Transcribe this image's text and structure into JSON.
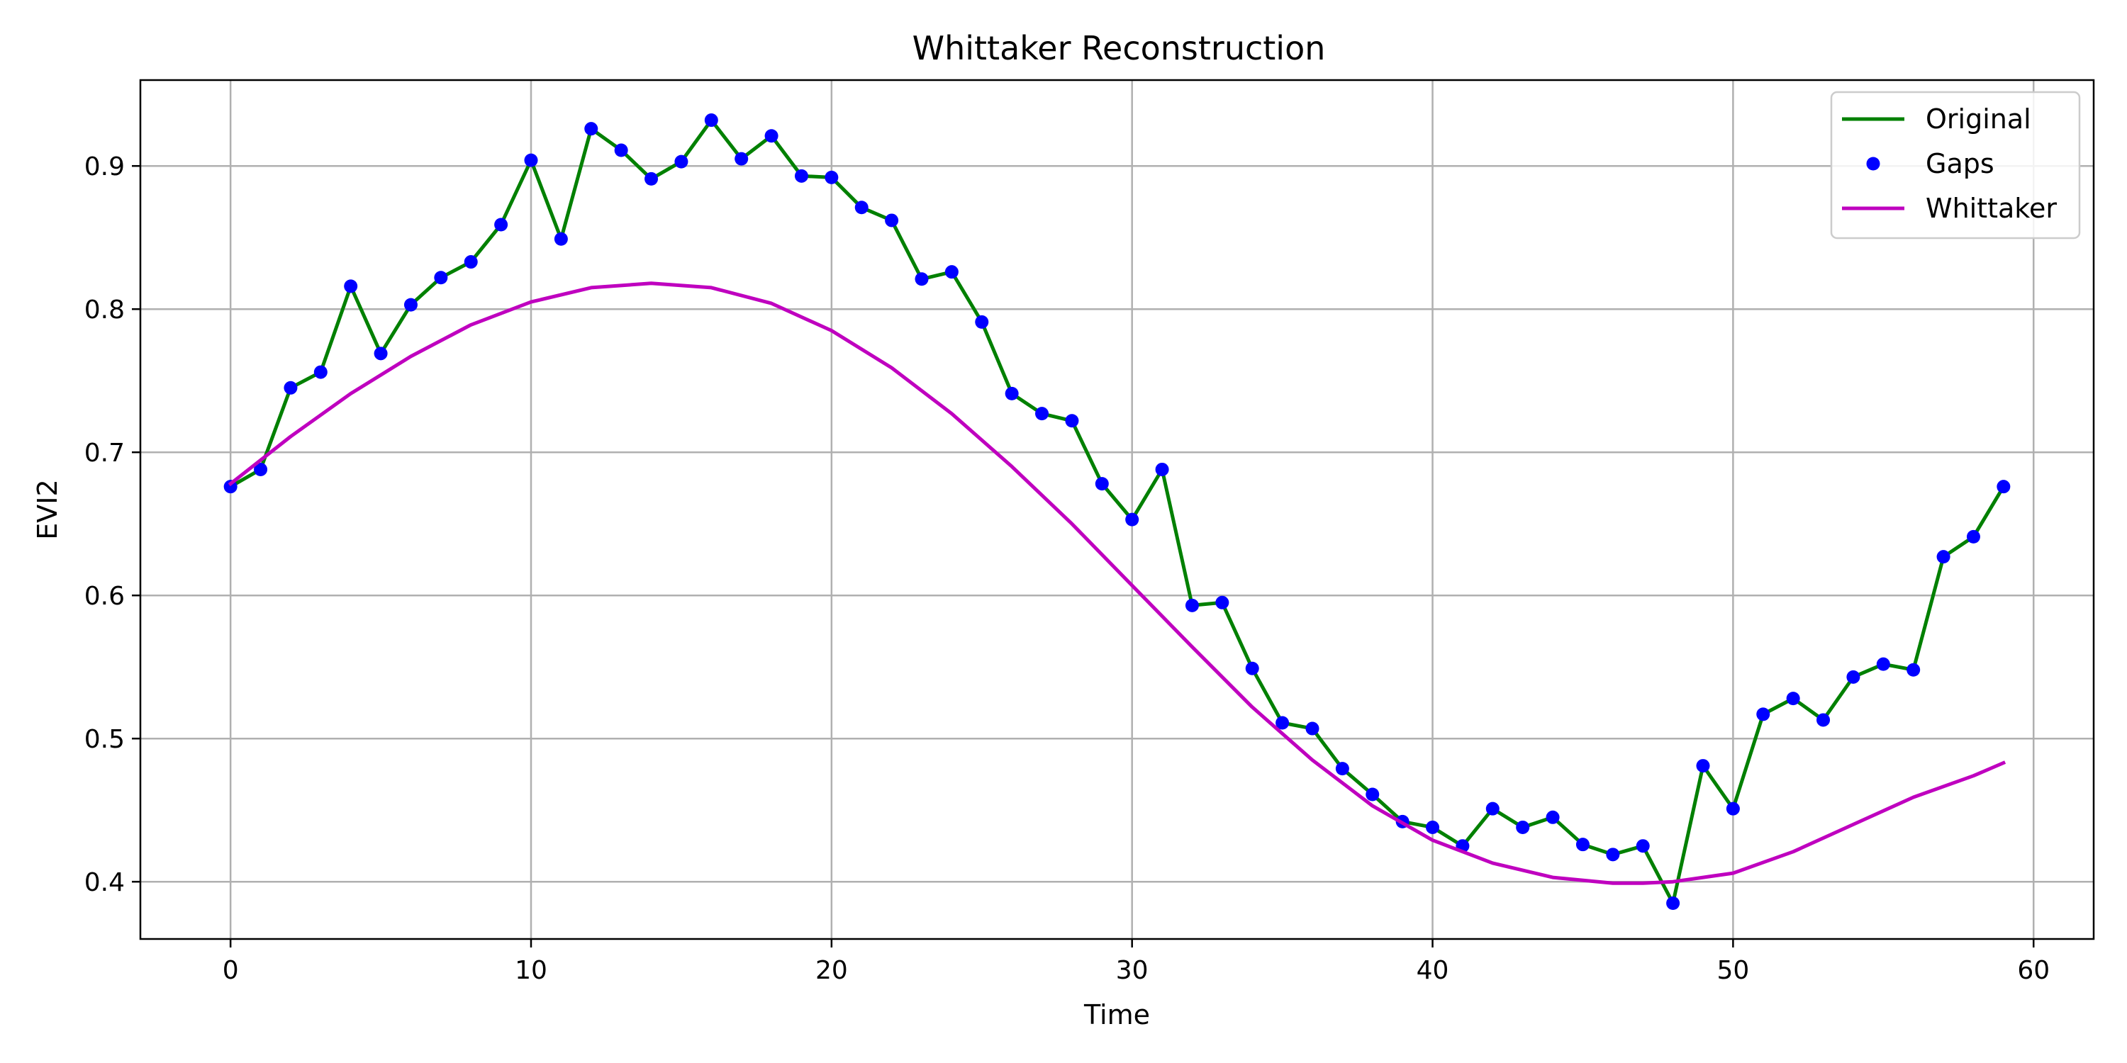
{
  "chart_data": {
    "type": "line",
    "title": "Whittaker Reconstruction",
    "xlabel": "Time",
    "ylabel": "EVI2",
    "xlim": [
      -3,
      62
    ],
    "ylim": [
      0.36,
      0.96
    ],
    "xticks": [
      0,
      10,
      20,
      30,
      40,
      50,
      60
    ],
    "yticks": [
      0.4,
      0.5,
      0.6,
      0.7,
      0.8,
      0.9
    ],
    "grid": true,
    "legend": "top-right",
    "series": [
      {
        "name": "Original",
        "style": "line",
        "color": "#008000",
        "x": [
          0,
          1,
          2,
          3,
          4,
          5,
          6,
          7,
          8,
          9,
          10,
          11,
          12,
          13,
          14,
          15,
          16,
          17,
          18,
          19,
          20,
          21,
          22,
          23,
          24,
          25,
          26,
          27,
          28,
          29,
          30,
          31,
          32,
          33,
          34,
          35,
          36,
          37,
          38,
          39,
          40,
          41,
          42,
          43,
          44,
          45,
          46,
          47,
          48,
          49,
          50,
          51,
          52,
          53,
          54,
          55,
          56,
          57,
          58,
          59
        ],
        "values": [
          0.676,
          0.688,
          0.745,
          0.756,
          0.816,
          0.769,
          0.803,
          0.822,
          0.833,
          0.859,
          0.904,
          0.849,
          0.926,
          0.911,
          0.891,
          0.903,
          0.932,
          0.905,
          0.921,
          0.893,
          0.892,
          0.871,
          0.862,
          0.821,
          0.826,
          0.791,
          0.741,
          0.727,
          0.722,
          0.678,
          0.653,
          0.688,
          0.593,
          0.595,
          0.549,
          0.511,
          0.507,
          0.479,
          0.461,
          0.442,
          0.438,
          0.425,
          0.451,
          0.438,
          0.445,
          0.426,
          0.419,
          0.425,
          0.385,
          0.481,
          0.451,
          0.517,
          0.528,
          0.513,
          0.543,
          0.552,
          0.548,
          0.627,
          0.641,
          0.676
        ]
      },
      {
        "name": "Gaps",
        "style": "markers",
        "color": "#0000ff",
        "x": [
          0,
          1,
          2,
          3,
          4,
          5,
          6,
          7,
          8,
          9,
          10,
          11,
          12,
          13,
          14,
          15,
          16,
          17,
          18,
          19,
          20,
          21,
          22,
          23,
          24,
          25,
          26,
          27,
          28,
          29,
          30,
          31,
          32,
          33,
          34,
          35,
          36,
          37,
          38,
          39,
          40,
          41,
          42,
          43,
          44,
          45,
          46,
          47,
          48,
          49,
          50,
          51,
          52,
          53,
          54,
          55,
          56,
          57,
          58,
          59
        ],
        "values": [
          0.676,
          0.688,
          0.745,
          0.756,
          0.816,
          0.769,
          0.803,
          0.822,
          0.833,
          0.859,
          0.904,
          0.849,
          0.926,
          0.911,
          0.891,
          0.903,
          0.932,
          0.905,
          0.921,
          0.893,
          0.892,
          0.871,
          0.862,
          0.821,
          0.826,
          0.791,
          0.741,
          0.727,
          0.722,
          0.678,
          0.653,
          0.688,
          0.593,
          0.595,
          0.549,
          0.511,
          0.507,
          0.479,
          0.461,
          0.442,
          0.438,
          0.425,
          0.451,
          0.438,
          0.445,
          0.426,
          0.419,
          0.425,
          0.385,
          0.481,
          0.451,
          0.517,
          0.528,
          0.513,
          0.543,
          0.552,
          0.548,
          0.627,
          0.641,
          0.676
        ]
      },
      {
        "name": "Whittaker",
        "style": "line",
        "color": "#bf00bf",
        "x": [
          0,
          2,
          4,
          6,
          8,
          10,
          12,
          14,
          16,
          18,
          20,
          22,
          24,
          26,
          28,
          30,
          32,
          34,
          36,
          38,
          40,
          42,
          44,
          46,
          47,
          48,
          50,
          52,
          54,
          56,
          58,
          59
        ],
        "values": [
          0.678,
          0.711,
          0.741,
          0.767,
          0.789,
          0.805,
          0.815,
          0.818,
          0.815,
          0.804,
          0.785,
          0.759,
          0.727,
          0.69,
          0.65,
          0.607,
          0.564,
          0.522,
          0.485,
          0.453,
          0.429,
          0.413,
          0.403,
          0.399,
          0.399,
          0.4,
          0.406,
          0.421,
          0.44,
          0.459,
          0.474,
          0.483
        ]
      }
    ]
  }
}
